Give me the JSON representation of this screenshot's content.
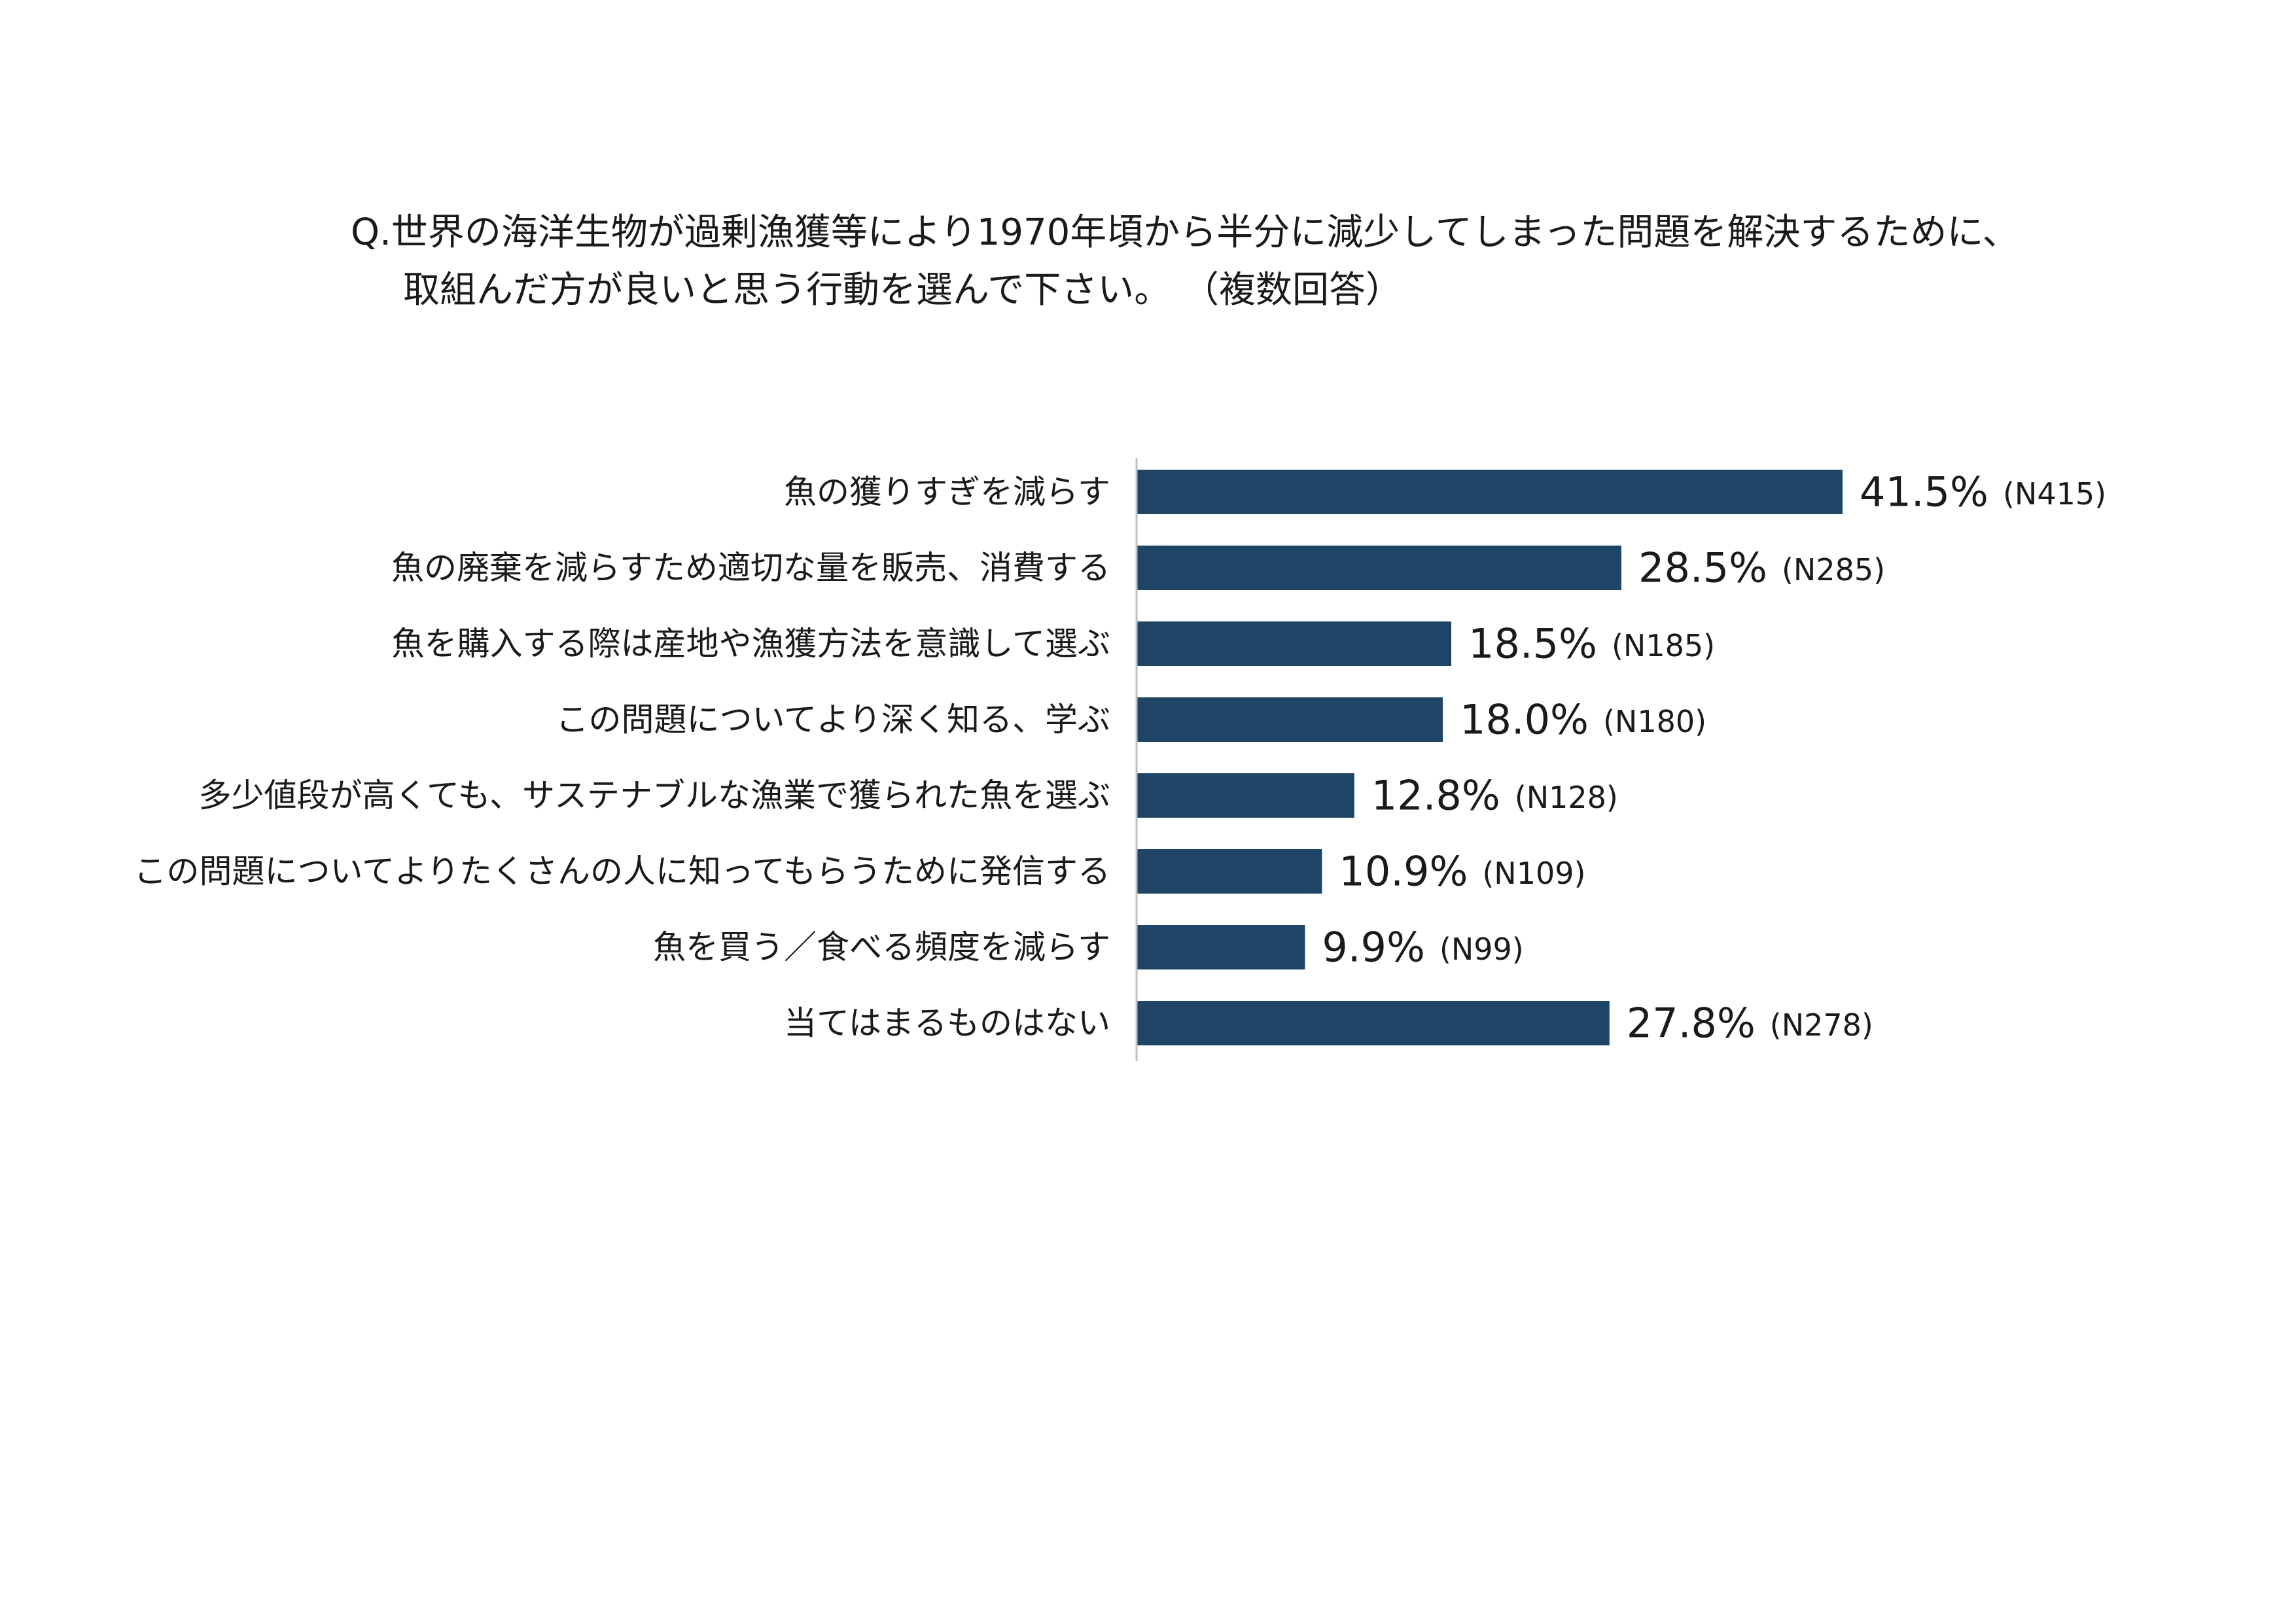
{
  "question": {
    "line1": "Q.世界の海洋生物が過剰漁獲等により1970年頃から半分に減少してしまった問題を解決するために、",
    "line2": "取組んだ方が良いと思う行動を選んで下さい。 （複数回答）"
  },
  "colors": {
    "bar": "#1e4565",
    "axis": "#c0c0c0",
    "text": "#1a1a1a"
  },
  "chart_data": {
    "type": "bar",
    "orientation": "horizontal",
    "xlim": [
      0,
      100
    ],
    "grid": false,
    "categories": [
      "魚の獲りすぎを減らす",
      "魚の廃棄を減らすため適切な量を販売、消費する",
      "魚を購入する際は産地や漁獲方法を意識して選ぶ",
      "この問題についてより深く知る、学ぶ",
      "多少値段が高くても、サステナブルな漁業で獲られた魚を選ぶ",
      "この問題についてよりたくさんの人に知ってもらうために発信する",
      "魚を買う／食べる頻度を減らす",
      "当てはまるものはない"
    ],
    "values": [
      41.5,
      28.5,
      18.5,
      18.0,
      12.8,
      10.9,
      9.9,
      27.8
    ],
    "value_labels": [
      "41.5%",
      "28.5%",
      "18.5%",
      "18.0%",
      "12.8%",
      "10.9%",
      "9.9%",
      "27.8%"
    ],
    "n_labels": [
      "(N415)",
      "(N285)",
      "(N185)",
      "(N180)",
      "(N128)",
      "(N109)",
      "(N99)",
      "(N278)"
    ]
  }
}
